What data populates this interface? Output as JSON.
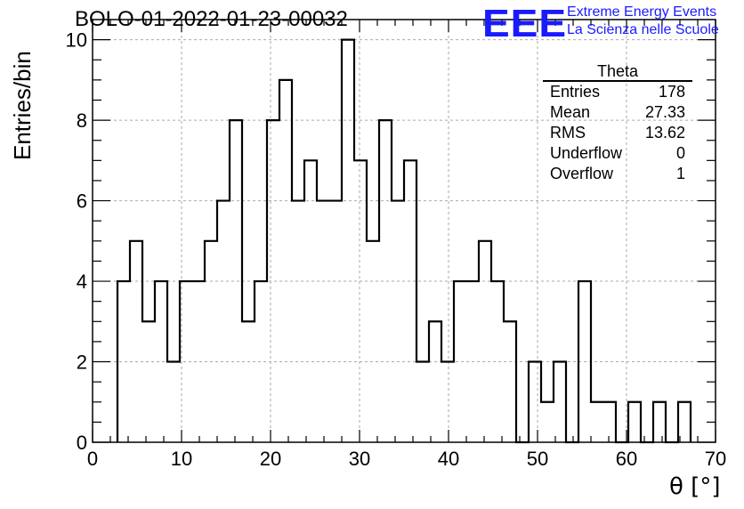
{
  "title": "BOLO-01-2022-01-23-00032",
  "logo": {
    "mark": "EEE",
    "line1": "Extreme Energy Events",
    "line2": "La Scienza nelle Scuole",
    "color": "#1a1aff"
  },
  "stats": {
    "title": "Theta",
    "rows": [
      {
        "label": "Entries",
        "value": "178"
      },
      {
        "label": "Mean",
        "value": "27.33"
      },
      {
        "label": "RMS",
        "value": "13.62"
      },
      {
        "label": "Underflow",
        "value": "0"
      },
      {
        "label": "Overflow",
        "value": "1"
      }
    ]
  },
  "chart_data": {
    "type": "bar",
    "style": "step-histogram",
    "title": "BOLO-01-2022-01-23-00032",
    "xlabel": "θ [°]",
    "ylabel": "Entries/bin",
    "xlim": [
      0,
      70
    ],
    "ylim": [
      0,
      10.5
    ],
    "xticks": [
      0,
      10,
      20,
      30,
      40,
      50,
      60,
      70
    ],
    "yticks": [
      0,
      2,
      4,
      6,
      8,
      10
    ],
    "grid": true,
    "bin_width": 1.4,
    "bin_edges_start": 2.8,
    "values": [
      4,
      5,
      3,
      4,
      2,
      4,
      4,
      5,
      6,
      8,
      3,
      4,
      8,
      9,
      6,
      7,
      6,
      6,
      10,
      7,
      5,
      8,
      6,
      7,
      2,
      3,
      2,
      4,
      4,
      5,
      4,
      3,
      0,
      2,
      1,
      2,
      0,
      4,
      1,
      1,
      0,
      1,
      0,
      1,
      0,
      1
    ]
  }
}
